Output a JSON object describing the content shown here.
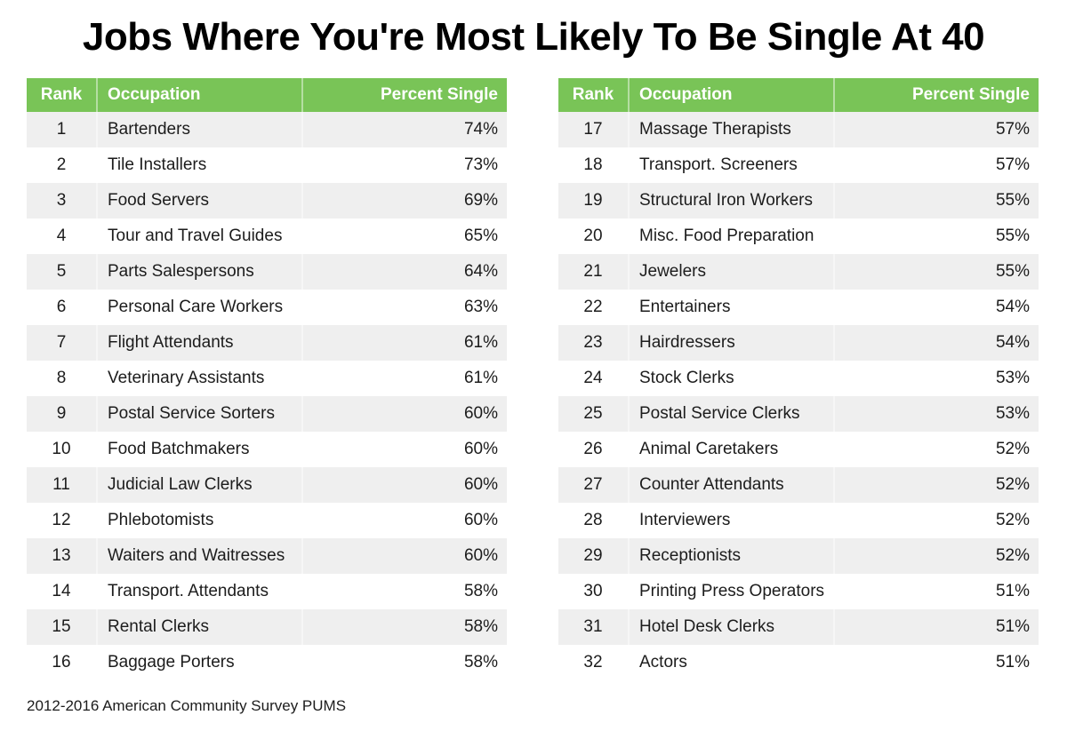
{
  "chart_data": {
    "type": "table",
    "title": "Jobs Where You're Most Likely To Be Single At 40",
    "columns": [
      "Rank",
      "Occupation",
      "Percent Single"
    ],
    "source": "2012-2016 American Community Survey PUMS",
    "layout": "two side-by-side striped tables; ranks 1-16 in left table, ranks 17-32 in right table; header green, odd rows light gray",
    "colors": {
      "header_background": "#79C457",
      "header_text": "#FFFFFF",
      "row_stripe": "#EFEFEF",
      "body_text": "#1C1C1C"
    },
    "rows_per_table": 16,
    "rows": [
      {
        "rank": "1",
        "occupation": "Bartenders",
        "percent_single": "74%"
      },
      {
        "rank": "2",
        "occupation": "Tile Installers",
        "percent_single": "73%"
      },
      {
        "rank": "3",
        "occupation": "Food Servers",
        "percent_single": "69%"
      },
      {
        "rank": "4",
        "occupation": "Tour and Travel Guides",
        "percent_single": "65%"
      },
      {
        "rank": "5",
        "occupation": "Parts Salespersons",
        "percent_single": "64%"
      },
      {
        "rank": "6",
        "occupation": "Personal Care Workers",
        "percent_single": "63%"
      },
      {
        "rank": "7",
        "occupation": "Flight Attendants",
        "percent_single": "61%"
      },
      {
        "rank": "8",
        "occupation": "Veterinary Assistants",
        "percent_single": "61%"
      },
      {
        "rank": "9",
        "occupation": "Postal Service Sorters",
        "percent_single": "60%"
      },
      {
        "rank": "10",
        "occupation": "Food Batchmakers",
        "percent_single": "60%"
      },
      {
        "rank": "11",
        "occupation": "Judicial Law Clerks",
        "percent_single": "60%"
      },
      {
        "rank": "12",
        "occupation": "Phlebotomists",
        "percent_single": "60%"
      },
      {
        "rank": "13",
        "occupation": "Waiters and Waitresses",
        "percent_single": "60%"
      },
      {
        "rank": "14",
        "occupation": "Transport. Attendants",
        "percent_single": "58%"
      },
      {
        "rank": "15",
        "occupation": "Rental Clerks",
        "percent_single": "58%"
      },
      {
        "rank": "16",
        "occupation": "Baggage Porters",
        "percent_single": "58%"
      },
      {
        "rank": "17",
        "occupation": "Massage Therapists",
        "percent_single": "57%"
      },
      {
        "rank": "18",
        "occupation": "Transport. Screeners",
        "percent_single": "57%"
      },
      {
        "rank": "19",
        "occupation": "Structural Iron Workers",
        "percent_single": "55%"
      },
      {
        "rank": "20",
        "occupation": "Misc. Food Preparation",
        "percent_single": "55%"
      },
      {
        "rank": "21",
        "occupation": "Jewelers",
        "percent_single": "55%"
      },
      {
        "rank": "22",
        "occupation": "Entertainers",
        "percent_single": "54%"
      },
      {
        "rank": "23",
        "occupation": "Hairdressers",
        "percent_single": "54%"
      },
      {
        "rank": "24",
        "occupation": "Stock Clerks",
        "percent_single": "53%"
      },
      {
        "rank": "25",
        "occupation": "Postal Service Clerks",
        "percent_single": "53%"
      },
      {
        "rank": "26",
        "occupation": "Animal Caretakers",
        "percent_single": "52%"
      },
      {
        "rank": "27",
        "occupation": "Counter Attendants",
        "percent_single": "52%"
      },
      {
        "rank": "28",
        "occupation": "Interviewers",
        "percent_single": "52%"
      },
      {
        "rank": "29",
        "occupation": "Receptionists",
        "percent_single": "52%"
      },
      {
        "rank": "30",
        "occupation": "Printing Press Operators",
        "percent_single": "51%"
      },
      {
        "rank": "31",
        "occupation": "Hotel Desk Clerks",
        "percent_single": "51%"
      },
      {
        "rank": "32",
        "occupation": "Actors",
        "percent_single": "51%"
      }
    ]
  }
}
